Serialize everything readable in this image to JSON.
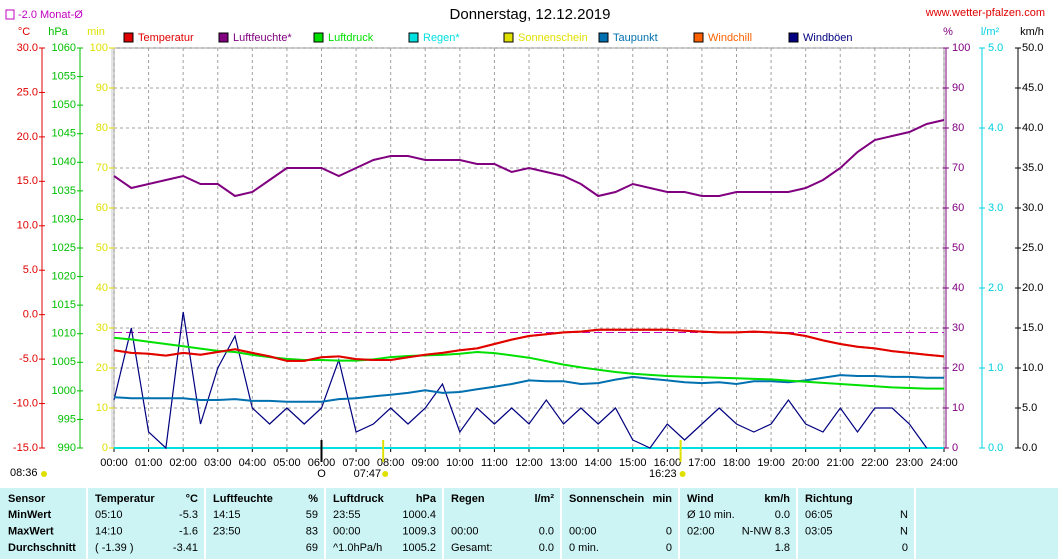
{
  "site": "www.wetter-pfalzen.com",
  "updated": "08:36",
  "chart_data": {
    "type": "line",
    "title": "Donnerstag, 12.12.2019",
    "reference_line": {
      "value": -2.0,
      "label": "-2.0 Monat-Ø",
      "axis": 0,
      "color": "#c000c0"
    },
    "grid": true,
    "xlim": [
      0,
      24
    ],
    "xticks": [
      {
        "value": 0,
        "label": "00:00"
      },
      {
        "value": 1,
        "label": "01:00"
      },
      {
        "value": 2,
        "label": "02:00"
      },
      {
        "value": 3,
        "label": "03:00"
      },
      {
        "value": 4,
        "label": "04:00"
      },
      {
        "value": 5,
        "label": "05:00"
      },
      {
        "value": 6,
        "label": "06:00"
      },
      {
        "value": 7,
        "label": "07:00"
      },
      {
        "value": 8,
        "label": "08:00"
      },
      {
        "value": 9,
        "label": "09:00"
      },
      {
        "value": 10,
        "label": "10:00"
      },
      {
        "value": 11,
        "label": "11:00"
      },
      {
        "value": 12,
        "label": "12:00"
      },
      {
        "value": 13,
        "label": "13:00"
      },
      {
        "value": 14,
        "label": "14:00"
      },
      {
        "value": 15,
        "label": "15:00"
      },
      {
        "value": 16,
        "label": "16:00"
      },
      {
        "value": 17,
        "label": "17:00"
      },
      {
        "value": 18,
        "label": "18:00"
      },
      {
        "value": 19,
        "label": "19:00"
      },
      {
        "value": 20,
        "label": "20:00"
      },
      {
        "value": 21,
        "label": "21:00"
      },
      {
        "value": 22,
        "label": "22:00"
      },
      {
        "value": 23,
        "label": "23:00"
      },
      {
        "value": 24,
        "label": "24:00"
      }
    ],
    "markers": [
      {
        "value": 6,
        "label": "O",
        "color": "#000000"
      },
      {
        "value": 7.783,
        "label": "07:47",
        "color": "#e0e000"
      },
      {
        "value": 16.383,
        "label": "16:23",
        "color": "#e0e000"
      }
    ],
    "axes": [
      {
        "unit": "°C",
        "color": "#e00000",
        "lim": [
          -15,
          30
        ],
        "ticks": [
          {
            "value": -15,
            "label": "-15.0"
          },
          {
            "value": -10,
            "label": "-10.0"
          },
          {
            "value": -5,
            "label": "-5.0"
          },
          {
            "value": 0,
            "label": "0.0"
          },
          {
            "value": 5,
            "label": "5.0"
          },
          {
            "value": 10,
            "label": "10.0"
          },
          {
            "value": 15,
            "label": "15.0"
          },
          {
            "value": 20,
            "label": "20.0"
          },
          {
            "value": 25,
            "label": "25.0"
          },
          {
            "value": 30,
            "label": "30.0"
          }
        ]
      },
      {
        "unit": "hPa",
        "color": "#00c000",
        "lim": [
          990,
          1060
        ],
        "ticks": [
          990,
          995,
          1000,
          1005,
          1010,
          1015,
          1020,
          1025,
          1030,
          1035,
          1040,
          1045,
          1050,
          1055,
          1060
        ]
      },
      {
        "unit": "min",
        "color": "#e0e000",
        "lim": [
          0,
          100
        ],
        "ticks": [
          0,
          10,
          20,
          30,
          40,
          50,
          60,
          70,
          80,
          90,
          100
        ]
      },
      {
        "unit": "%",
        "color": "#800080",
        "lim": [
          0,
          100
        ],
        "ticks": [
          0,
          10,
          20,
          30,
          40,
          50,
          60,
          70,
          80,
          90,
          100
        ]
      },
      {
        "unit": "l/m²",
        "color": "#00d0e0",
        "lim": [
          0,
          5
        ],
        "ticks": [
          {
            "value": 0,
            "label": "0.0"
          },
          {
            "value": 1,
            "label": "1.0"
          },
          {
            "value": 2,
            "label": "2.0"
          },
          {
            "value": 3,
            "label": "3.0"
          },
          {
            "value": 4,
            "label": "4.0"
          },
          {
            "value": 5,
            "label": "5.0"
          }
        ]
      },
      {
        "unit": "km/h",
        "color": "#000000",
        "lim": [
          0,
          50
        ],
        "ticks": [
          {
            "value": 0,
            "label": "0.0"
          },
          {
            "value": 5,
            "label": "5.0"
          },
          {
            "value": 10,
            "label": "10.0"
          },
          {
            "value": 15,
            "label": "15.0"
          },
          {
            "value": 20,
            "label": "20.0"
          },
          {
            "value": 25,
            "label": "25.0"
          },
          {
            "value": 30,
            "label": "30.0"
          },
          {
            "value": 35,
            "label": "35.0"
          },
          {
            "value": 40,
            "label": "40.0"
          },
          {
            "value": 45,
            "label": "45.0"
          },
          {
            "value": 50,
            "label": "50.0"
          }
        ]
      }
    ],
    "x": [
      0,
      0.5,
      1,
      1.5,
      2,
      2.5,
      3,
      3.5,
      4,
      4.5,
      5,
      5.5,
      6,
      6.5,
      7,
      7.5,
      8,
      8.5,
      9,
      9.5,
      10,
      10.5,
      11,
      11.5,
      12,
      12.5,
      13,
      13.5,
      14,
      14.5,
      15,
      15.5,
      16,
      16.5,
      17,
      17.5,
      18,
      18.5,
      19,
      19.5,
      20,
      20.5,
      21,
      21.5,
      22,
      22.5,
      23,
      23.5,
      24
    ],
    "series": [
      {
        "name": "Temperatur",
        "color": "#e00000",
        "axis": 0,
        "values": [
          -4.0,
          -4.3,
          -4.4,
          -4.6,
          -4.3,
          -4.5,
          -4.2,
          -3.9,
          -4.3,
          -4.7,
          -5.2,
          -5.2,
          -4.8,
          -4.7,
          -5.0,
          -5.1,
          -5.1,
          -4.8,
          -4.5,
          -4.3,
          -4.0,
          -3.8,
          -3.3,
          -2.8,
          -2.4,
          -2.2,
          -2.0,
          -1.9,
          -1.7,
          -1.7,
          -1.7,
          -1.7,
          -1.7,
          -1.8,
          -1.9,
          -2.0,
          -2.0,
          -1.9,
          -2.0,
          -2.1,
          -2.4,
          -2.9,
          -3.3,
          -3.6,
          -3.8,
          -4.1,
          -4.3,
          -4.5,
          -4.7
        ]
      },
      {
        "name": "Luftfeuchte*",
        "color": "#800080",
        "axis": 3,
        "values": [
          68,
          65,
          66,
          67,
          68,
          66,
          66,
          63,
          64,
          67,
          70,
          70,
          70,
          68,
          70,
          72,
          73,
          73,
          72,
          72,
          72,
          71,
          71,
          69,
          70,
          69,
          68,
          66,
          63,
          64,
          66,
          65,
          64,
          64,
          63,
          63,
          64,
          64,
          64,
          64,
          65,
          67,
          70,
          74,
          77,
          78,
          79,
          81,
          82
        ]
      },
      {
        "name": "Luftdruck",
        "color": "#00e000",
        "axis": 1,
        "values": [
          1009.3,
          1009.0,
          1008.6,
          1008.2,
          1007.8,
          1007.4,
          1007.0,
          1006.8,
          1006.3,
          1005.9,
          1005.6,
          1005.4,
          1005.4,
          1005.3,
          1005.3,
          1005.5,
          1005.9,
          1006.1,
          1006.2,
          1006.3,
          1006.5,
          1006.8,
          1006.6,
          1006.2,
          1005.8,
          1005.2,
          1004.6,
          1004.1,
          1003.7,
          1003.3,
          1003.0,
          1002.8,
          1002.6,
          1002.5,
          1002.4,
          1002.3,
          1002.2,
          1002.1,
          1002.0,
          1001.8,
          1001.6,
          1001.4,
          1001.2,
          1001.0,
          1000.8,
          1000.6,
          1000.5,
          1000.4,
          1000.4
        ]
      },
      {
        "name": "Regen*",
        "color": "#00e0e0",
        "axis": 4,
        "values": [
          0,
          0,
          0,
          0,
          0,
          0,
          0,
          0,
          0,
          0,
          0,
          0,
          0,
          0,
          0,
          0,
          0,
          0,
          0,
          0,
          0,
          0,
          0,
          0,
          0,
          0,
          0,
          0,
          0,
          0,
          0,
          0,
          0,
          0,
          0,
          0,
          0,
          0,
          0,
          0,
          0,
          0,
          0,
          0,
          0,
          0,
          0,
          0,
          0
        ]
      },
      {
        "name": "Sonnenschein",
        "color": "#e0e000",
        "axis": 2,
        "values": [
          0,
          0,
          0,
          0,
          0,
          0,
          0,
          0,
          0,
          0,
          0,
          0,
          0,
          0,
          0,
          0,
          0,
          0,
          0,
          0,
          0,
          0,
          0,
          0,
          0,
          0,
          0,
          0,
          0,
          0,
          0,
          0,
          0,
          0,
          0,
          0,
          0,
          0,
          0,
          0,
          0,
          0,
          0,
          0,
          0,
          0,
          0,
          0,
          0
        ]
      },
      {
        "name": "Taupunkt",
        "color": "#0070b0",
        "axis": 0,
        "values": [
          -9.3,
          -9.4,
          -9.4,
          -9.4,
          -9.4,
          -9.6,
          -9.6,
          -9.5,
          -9.7,
          -9.7,
          -9.8,
          -9.8,
          -9.8,
          -9.5,
          -9.4,
          -9.2,
          -9.0,
          -8.8,
          -8.5,
          -8.8,
          -8.7,
          -8.4,
          -8.1,
          -7.8,
          -7.4,
          -7.5,
          -7.5,
          -7.8,
          -7.7,
          -7.3,
          -7.0,
          -7.2,
          -7.4,
          -7.6,
          -7.7,
          -7.6,
          -7.8,
          -7.5,
          -7.5,
          -7.6,
          -7.4,
          -7.1,
          -6.8,
          -6.9,
          -6.9,
          -7.0,
          -7.0,
          -7.1,
          -7.1
        ]
      },
      {
        "name": "Windchill",
        "color": "#ff6000",
        "axis": 0,
        "values": [
          -4.0,
          -4.3,
          -4.4,
          -4.6,
          -4.3,
          -4.5,
          -4.2,
          -3.9,
          -4.3,
          -4.7,
          -5.2,
          -5.2,
          -4.8,
          -4.7,
          -5.0,
          -5.1,
          -5.1,
          -4.8,
          -4.5,
          -4.3,
          -4.0,
          -3.8,
          -3.3,
          -2.8,
          -2.4,
          -2.2,
          -2.0,
          -1.9,
          -1.7,
          -1.7,
          -1.7,
          -1.7,
          -1.7,
          -1.8,
          -1.9,
          -2.0,
          -2.0,
          -1.9,
          -2.0,
          -2.1,
          -2.4,
          -2.9,
          -3.3,
          -3.6,
          -3.8,
          -4.1,
          -4.3,
          -4.5,
          -4.7
        ]
      },
      {
        "name": "Windböen",
        "color": "#000080",
        "axis": 5,
        "values": [
          6,
          15,
          2,
          0,
          17,
          3,
          10,
          14,
          5,
          3,
          5,
          3,
          5,
          11,
          2,
          3,
          5,
          3,
          5,
          8,
          2,
          5,
          3,
          5,
          3,
          6,
          3,
          5,
          3,
          5,
          1,
          0,
          3,
          1,
          3,
          5,
          3,
          2,
          3,
          6,
          3,
          2,
          5,
          2,
          5,
          5,
          3,
          0,
          null
        ]
      }
    ]
  },
  "table": {
    "columns": [
      {
        "title": "Sensor"
      },
      {
        "title": "Temperatur",
        "unit": "°C"
      },
      {
        "title": "Luftfeuchte",
        "unit": "%"
      },
      {
        "title": "Luftdruck",
        "unit": "hPa"
      },
      {
        "title": "Regen",
        "unit": "l/m²"
      },
      {
        "title": "Sonnenschein",
        "unit": "min"
      },
      {
        "title": "Wind",
        "unit": "km/h"
      },
      {
        "title": "Richtung"
      }
    ],
    "rows": [
      {
        "label": "MinWert",
        "cells": [
          [
            "05:10",
            "-5.3"
          ],
          [
            "14:15",
            "59"
          ],
          [
            "23:55",
            "1000.4"
          ],
          [
            null,
            null
          ],
          [
            null,
            null
          ],
          [
            "Ø 10 min.",
            "0.0"
          ],
          [
            "06:05",
            "N"
          ]
        ]
      },
      {
        "label": "MaxWert",
        "cells": [
          [
            "14:10",
            "-1.6"
          ],
          [
            "23:50",
            "83"
          ],
          [
            "00:00",
            "1009.3"
          ],
          [
            "00:00",
            "0.0"
          ],
          [
            "00:00",
            "0"
          ],
          [
            "02:00",
            "N-NW 8.3"
          ],
          [
            "03:05",
            "N"
          ]
        ]
      },
      {
        "label": "Durchschnitt",
        "cells": [
          [
            "( -1.39 )",
            "-3.41"
          ],
          [
            null,
            "69"
          ],
          [
            "^1.0hPa/h",
            "1005.2"
          ],
          [
            "Gesamt:",
            "0.0"
          ],
          [
            "0 min.",
            "0"
          ],
          [
            null,
            "1.8"
          ],
          [
            null,
            "0"
          ]
        ]
      }
    ]
  }
}
